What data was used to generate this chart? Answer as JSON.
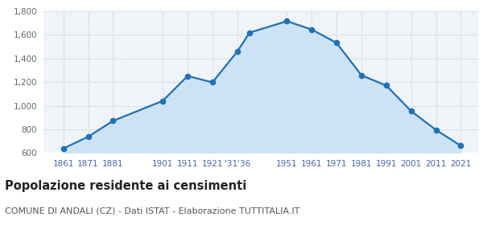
{
  "years": [
    1861,
    1871,
    1881,
    1901,
    1911,
    1921,
    1931,
    1936,
    1951,
    1961,
    1971,
    1981,
    1991,
    2001,
    2011,
    2021
  ],
  "population": [
    638,
    738,
    872,
    1041,
    1252,
    1198,
    1458,
    1619,
    1716,
    1645,
    1532,
    1258,
    1171,
    955,
    796,
    661
  ],
  "line_color": "#2070b4",
  "fill_color": "#cde3f5",
  "marker_color": "#2070b4",
  "bg_color": "#f0f4f8",
  "grid_color": "#c8d8e8",
  "title": "Popolazione residente ai censimenti",
  "subtitle": "COMUNE DI ANDALI (CZ) - Dati ISTAT - Elaborazione TUTTITALIA.IT",
  "ylim": [
    600,
    1800
  ],
  "yticks": [
    600,
    800,
    1000,
    1200,
    1400,
    1600,
    1800
  ],
  "xtick_positions": [
    1861,
    1871,
    1881,
    1901,
    1911,
    1921,
    1931,
    1951,
    1961,
    1971,
    1981,
    1991,
    2001,
    2011,
    2021
  ],
  "xtick_labels": [
    "1861",
    "1871",
    "1881",
    "1901",
    "1911",
    "1921",
    "'31'36",
    "1951",
    "1961",
    "1971",
    "1981",
    "1991",
    "2001",
    "2011",
    "2021"
  ],
  "xlim_left": 1853,
  "xlim_right": 2028
}
